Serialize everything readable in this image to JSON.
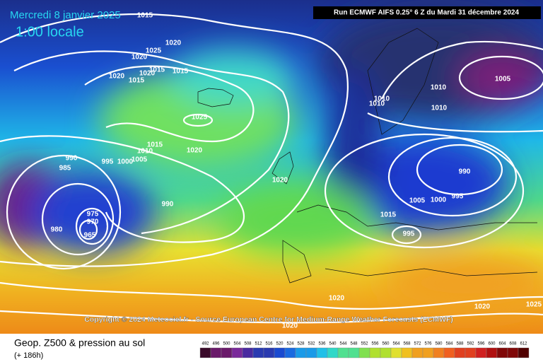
{
  "header": {
    "date": "Mercredi 8 janvier 2025",
    "time": "1:00 locale",
    "run": "Run ECMWF AIFS 0.25° 6 Z du Mardi 31 décembre 2024"
  },
  "isobar_labels": [
    1015,
    1020,
    1025,
    1020,
    1015,
    1020,
    1015,
    1020,
    1015,
    1025,
    1015,
    1010,
    1020,
    1005,
    1000,
    995,
    990,
    985,
    990,
    975,
    970,
    965,
    980,
    1010,
    1010,
    1010,
    1010,
    1005,
    1020,
    990,
    995,
    1000,
    1005,
    1015,
    995,
    1020,
    1020,
    1020,
    1025
  ],
  "copyright": "Copyright © 2024 Meteociel.fr - Source European Centre for Medium-Range Weather Forecasts (ECMWF)",
  "footer": {
    "title": "Geop. Z500 & pression au sol",
    "lead": "(+ 186h)"
  },
  "colorbar": [
    492,
    496,
    500,
    504,
    508,
    512,
    516,
    520,
    524,
    528,
    532,
    536,
    540,
    544,
    548,
    552,
    556,
    560,
    564,
    568,
    572,
    576,
    580,
    584,
    588,
    592,
    596,
    600,
    604,
    608,
    612
  ]
}
